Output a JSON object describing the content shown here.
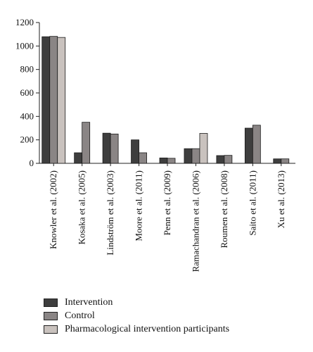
{
  "chart_data": {
    "type": "bar",
    "categories": [
      "Knowler et al. (2002)",
      "Kosaka et al. (2005)",
      "Lindström et al. (2003)",
      "Moore et al. (2011)",
      "Penn et al. (2009)",
      "Ramachandran et al. (2006)",
      "Roumen et al. (2008)",
      "Saito et al. (2011)",
      "Xu et al. (2013)"
    ],
    "series": [
      {
        "name": "Intervention",
        "color": "#3e3e3e",
        "values": [
          1079,
          90,
          257,
          200,
          46,
          125,
          66,
          300,
          38
        ]
      },
      {
        "name": "Control",
        "color": "#8a8585",
        "values": [
          1082,
          350,
          250,
          90,
          43,
          125,
          68,
          325,
          38
        ]
      },
      {
        "name": "Pharmacological intervention participants",
        "color": "#c9c2be",
        "values": [
          1073,
          null,
          null,
          null,
          null,
          255,
          null,
          null,
          null
        ]
      }
    ],
    "yticks": [
      "0",
      "200",
      "400",
      "600",
      "800",
      "1000",
      "1200"
    ],
    "ylim": [
      0,
      1200
    ],
    "title": "",
    "xlabel": "",
    "ylabel": "",
    "grid": false,
    "legend_position": "bottom-left"
  }
}
